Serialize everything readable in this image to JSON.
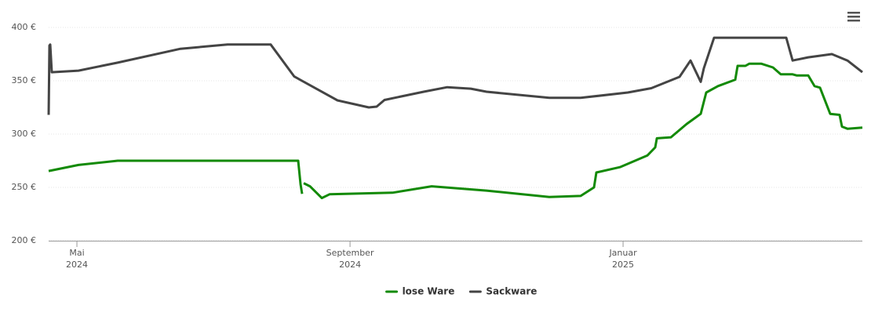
{
  "chart_data": {
    "type": "line",
    "xlim": [
      2024.2988,
      2025.2921
    ],
    "xticks": [
      {
        "value": 2024.3333,
        "label": [
          "Mai",
          "2024"
        ]
      },
      {
        "value": 2024.6667,
        "label": [
          "September",
          "2024"
        ]
      },
      {
        "value": 2025.0,
        "label": [
          "Januar",
          "2025"
        ]
      }
    ],
    "ylim": [
      200,
      400
    ],
    "yticks": [
      {
        "value": 200,
        "label": "200 €"
      },
      {
        "value": 250,
        "label": "250 €"
      },
      {
        "value": 300,
        "label": "300 €"
      },
      {
        "value": 350,
        "label": "350 €"
      },
      {
        "value": 400,
        "label": "400 €"
      }
    ],
    "grid": true,
    "legend": "bottom",
    "series": [
      {
        "name": "lose Ware",
        "color": "#138a07",
        "x": [
          2024.2988,
          2024.3352,
          2024.3831,
          2024.6034,
          2024.6063,
          2024.6082,
          2024.6092,
          2024.6101,
          2024.6178,
          2024.6322,
          2024.6417,
          2024.7184,
          2024.7663,
          2024.8333,
          2024.9099,
          2024.9482,
          2024.9645,
          2024.9674,
          2024.9961,
          2025.0297,
          2025.0392,
          2025.0412,
          2025.0584,
          2025.0776,
          2025.0948,
          2025.1015,
          2025.1159,
          2025.1369,
          2025.1398,
          2025.1494,
          2025.1542,
          2025.1685,
          2025.1829,
          2025.1925,
          2025.2069,
          2025.2117,
          2025.226,
          2025.2337,
          2025.2404,
          2025.2528,
          2025.2643,
          2025.2672,
          2025.2739,
          2025.2921
        ],
        "values": [
          265.4,
          271,
          275,
          275,
          253,
          244,
          null,
          254,
          251,
          240,
          243.5,
          245,
          251,
          247,
          241,
          242,
          250,
          264,
          269,
          280,
          287.5,
          296,
          297,
          309.5,
          319,
          339,
          345,
          351,
          364,
          364,
          366,
          366,
          362.5,
          356,
          356,
          355,
          355,
          345,
          343.5,
          319,
          318,
          307,
          305,
          306
        ]
      },
      {
        "name": "Sackware",
        "color": "#444444",
        "x": [
          2024.2988,
          2024.2998,
          2024.3007,
          2024.3026,
          2024.3352,
          2024.3831,
          2024.4597,
          2024.5172,
          2024.5699,
          2024.5986,
          2024.6513,
          2024.6896,
          2024.6992,
          2024.7088,
          2024.7567,
          2024.7854,
          2024.8141,
          2024.8333,
          2024.9099,
          2024.9482,
          2025.0057,
          2025.0344,
          2025.0689,
          2025.0823,
          2025.0948,
          2025.0986,
          2025.1111,
          2025.1992,
          2025.2069,
          2025.226,
          2025.2548,
          2025.2739,
          2025.2921
        ],
        "values": [
          318,
          383,
          384,
          358,
          359.5,
          367,
          380,
          384,
          384,
          354,
          331.6,
          325,
          325.7,
          332,
          339.7,
          344,
          342.6,
          339.7,
          334,
          334,
          339,
          343,
          353.7,
          369,
          349,
          361.8,
          390.4,
          390.4,
          369,
          372,
          375,
          369,
          358
        ]
      }
    ]
  }
}
